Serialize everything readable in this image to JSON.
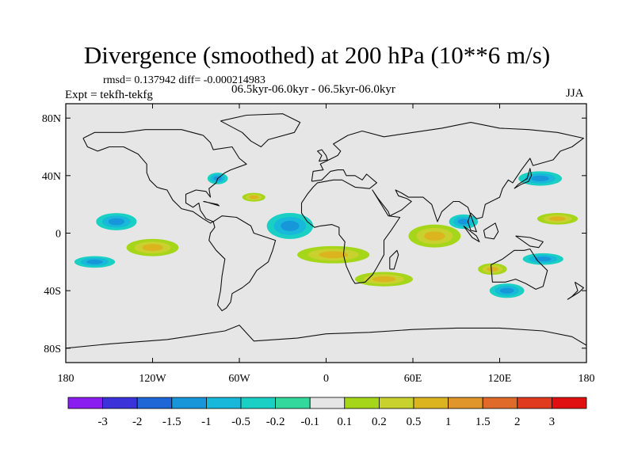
{
  "header": {
    "title": "Divergence (smoothed) at 200 hPa (10**6 m/s)",
    "stats": "rmsd= 0.137942 diff= -0.000214983",
    "expt": "Expt = tekfh-tekfg",
    "period": "06.5kyr-06.0kyr - 06.5kyr-06.0kyr",
    "season": "JJA"
  },
  "map": {
    "lon_range": [
      -180,
      180
    ],
    "lat_range": [
      -90,
      90
    ],
    "lat_ticks": [
      {
        "value": 80,
        "label": "80N"
      },
      {
        "value": 40,
        "label": "40N"
      },
      {
        "value": 0,
        "label": "0"
      },
      {
        "value": -40,
        "label": "40S"
      },
      {
        "value": -80,
        "label": "80S"
      }
    ],
    "lon_ticks": [
      {
        "value": -180,
        "label": "180"
      },
      {
        "value": -120,
        "label": "120W"
      },
      {
        "value": -60,
        "label": "60W"
      },
      {
        "value": 0,
        "label": "0"
      },
      {
        "value": 60,
        "label": "60E"
      },
      {
        "value": 120,
        "label": "120E"
      },
      {
        "value": 180,
        "label": "180"
      }
    ],
    "background_color": "#e6e6e6",
    "features": [
      {
        "type": "negative",
        "lon": -145,
        "lat": 8,
        "rx": 14,
        "ry": 6
      },
      {
        "type": "negative",
        "lon": -75,
        "lat": 38,
        "rx": 7,
        "ry": 4
      },
      {
        "type": "negative",
        "lon": -25,
        "lat": 5,
        "rx": 16,
        "ry": 9
      },
      {
        "type": "negative",
        "lon": 95,
        "lat": 8,
        "rx": 10,
        "ry": 5
      },
      {
        "type": "negative",
        "lon": 148,
        "lat": 38,
        "rx": 15,
        "ry": 5
      },
      {
        "type": "negative",
        "lon": 125,
        "lat": -40,
        "rx": 12,
        "ry": 5
      },
      {
        "type": "negative",
        "lon": -160,
        "lat": -20,
        "rx": 14,
        "ry": 4
      },
      {
        "type": "negative",
        "lon": 150,
        "lat": -18,
        "rx": 14,
        "ry": 4
      },
      {
        "type": "positive",
        "lon": -120,
        "lat": -10,
        "rx": 18,
        "ry": 6
      },
      {
        "type": "positive",
        "lon": 75,
        "lat": -2,
        "rx": 18,
        "ry": 8
      },
      {
        "type": "positive",
        "lon": 5,
        "lat": -15,
        "rx": 25,
        "ry": 6
      },
      {
        "type": "positive",
        "lon": -50,
        "lat": 25,
        "rx": 8,
        "ry": 3
      },
      {
        "type": "positive",
        "lon": 160,
        "lat": 10,
        "rx": 14,
        "ry": 4
      },
      {
        "type": "positive",
        "lon": 40,
        "lat": -32,
        "rx": 20,
        "ry": 5
      },
      {
        "type": "positive",
        "lon": 115,
        "lat": -25,
        "rx": 10,
        "ry": 4
      }
    ]
  },
  "colorbar": {
    "labels": [
      "-3",
      "-2",
      "-1.5",
      "-1",
      "-0.5",
      "-0.2",
      "-0.1",
      "0.1",
      "0.2",
      "0.5",
      "1",
      "1.5",
      "2",
      "3"
    ],
    "colors": [
      "#8a1ef0",
      "#3b33d9",
      "#1f66d6",
      "#1796d9",
      "#17b8d9",
      "#1ad0c4",
      "#33d99c",
      "#e6e6e6",
      "#a6d61a",
      "#c8d12e",
      "#dcb420",
      "#e0962a",
      "#e06a2a",
      "#e03a1f",
      "#e01010"
    ]
  }
}
